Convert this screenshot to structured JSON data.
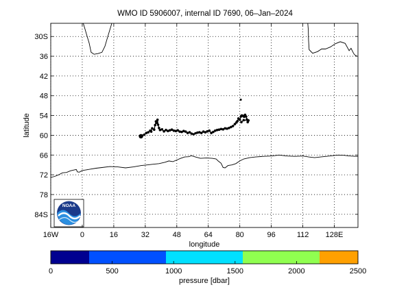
{
  "chart_data": {
    "type": "scatter",
    "title": "WMO ID 5906007, internal ID 7690, 06–Jan–2024",
    "xlabel": "longitude",
    "ylabel": "latitude",
    "xlim": [
      -16,
      140
    ],
    "ylim": [
      -88,
      -26
    ],
    "grid": true,
    "x_ticks": [
      {
        "value": -16,
        "label": "16W"
      },
      {
        "value": 0,
        "label": "0"
      },
      {
        "value": 16,
        "label": "16"
      },
      {
        "value": 32,
        "label": "32"
      },
      {
        "value": 48,
        "label": "48"
      },
      {
        "value": 64,
        "label": "64"
      },
      {
        "value": 80,
        "label": "80"
      },
      {
        "value": 96,
        "label": "96"
      },
      {
        "value": 112,
        "label": "112"
      },
      {
        "value": 128,
        "label": "128E"
      }
    ],
    "y_ticks": [
      {
        "value": -30,
        "label": "30S"
      },
      {
        "value": -36,
        "label": "36"
      },
      {
        "value": -42,
        "label": "42"
      },
      {
        "value": -48,
        "label": "48"
      },
      {
        "value": -54,
        "label": "54"
      },
      {
        "value": -60,
        "label": "60"
      },
      {
        "value": -66,
        "label": "66"
      },
      {
        "value": -72,
        "label": "72"
      },
      {
        "value": -78,
        "label": "78"
      },
      {
        "value": -84,
        "label": "84S"
      }
    ],
    "coastlines": [
      {
        "name": "africa",
        "points": [
          [
            0.5,
            -26
          ],
          [
            1.5,
            -28
          ],
          [
            2.5,
            -30
          ],
          [
            3.5,
            -32
          ],
          [
            4.5,
            -34.8
          ],
          [
            6,
            -35.4
          ],
          [
            8,
            -35.2
          ],
          [
            10,
            -34.8
          ],
          [
            11.5,
            -33
          ],
          [
            12.5,
            -31
          ],
          [
            13.5,
            -29
          ],
          [
            14.5,
            -27
          ],
          [
            15,
            -26
          ]
        ]
      },
      {
        "name": "australia",
        "points": [
          [
            114.5,
            -26
          ],
          [
            114.8,
            -28
          ],
          [
            114.9,
            -31
          ],
          [
            115.2,
            -34
          ],
          [
            117,
            -35.1
          ],
          [
            119.5,
            -34.6
          ],
          [
            121.5,
            -33.8
          ],
          [
            123.5,
            -33.8
          ],
          [
            126,
            -33.2
          ],
          [
            128.5,
            -32.2
          ],
          [
            131,
            -31.6
          ],
          [
            133.5,
            -32.1
          ],
          [
            135.5,
            -34.3
          ],
          [
            136.5,
            -33.6
          ],
          [
            137.5,
            -34.8
          ],
          [
            138.2,
            -35.5
          ],
          [
            139.5,
            -36
          ]
        ]
      },
      {
        "name": "antarctica",
        "points": [
          [
            -16,
            -72.8
          ],
          [
            -14,
            -72.5
          ],
          [
            -12,
            -72
          ],
          [
            -10,
            -71.4
          ],
          [
            -8,
            -71.3
          ],
          [
            -6,
            -70.8
          ],
          [
            -4,
            -70.5
          ],
          [
            -3,
            -70.4
          ],
          [
            -2.5,
            -71.1
          ],
          [
            -1.5,
            -71.2
          ],
          [
            0,
            -70.7
          ],
          [
            2,
            -70.5
          ],
          [
            4,
            -70.3
          ],
          [
            7,
            -70
          ],
          [
            10,
            -69.8
          ],
          [
            14,
            -69.5
          ],
          [
            18,
            -69.6
          ],
          [
            22,
            -69.9
          ],
          [
            26,
            -69.6
          ],
          [
            30,
            -69.2
          ],
          [
            33,
            -69
          ],
          [
            36,
            -68.8
          ],
          [
            39,
            -68.6
          ],
          [
            42,
            -68.2
          ],
          [
            44,
            -67.8
          ],
          [
            46,
            -68
          ],
          [
            48,
            -67.5
          ],
          [
            50,
            -67
          ],
          [
            52,
            -66.6
          ],
          [
            54,
            -66.5
          ],
          [
            55.5,
            -66.2
          ],
          [
            57,
            -66.5
          ],
          [
            60,
            -67
          ],
          [
            63,
            -66.9
          ],
          [
            66,
            -67
          ],
          [
            68,
            -67.2
          ],
          [
            69,
            -67.8
          ],
          [
            70.5,
            -68.5
          ],
          [
            71.5,
            -69.8
          ],
          [
            72.5,
            -69.9
          ],
          [
            74,
            -69.2
          ],
          [
            76,
            -69
          ],
          [
            78,
            -68.6
          ],
          [
            80,
            -67.8
          ],
          [
            82,
            -67.2
          ],
          [
            85,
            -66.8
          ],
          [
            88,
            -66.6
          ],
          [
            92,
            -66.4
          ],
          [
            96,
            -66.3
          ],
          [
            100,
            -66
          ],
          [
            104,
            -66.3
          ],
          [
            108,
            -66.4
          ],
          [
            112,
            -66.3
          ],
          [
            115,
            -66.6
          ],
          [
            118,
            -66.8
          ],
          [
            121,
            -66.6
          ],
          [
            124,
            -66.4
          ],
          [
            127,
            -66.2
          ],
          [
            130,
            -66
          ],
          [
            133,
            -66.1
          ],
          [
            136,
            -66.3
          ],
          [
            139,
            -66.4
          ],
          [
            140,
            -66.4
          ]
        ]
      }
    ],
    "float_track": {
      "name": "float track",
      "points": [
        [
          29.8,
          -60.3
        ],
        [
          30.5,
          -60.1
        ],
        [
          31.5,
          -59.8
        ],
        [
          32.5,
          -59.3
        ],
        [
          33.5,
          -59.1
        ],
        [
          34.5,
          -58.6
        ],
        [
          35,
          -58.9
        ],
        [
          35.5,
          -57.9
        ],
        [
          36.5,
          -58.3
        ],
        [
          37,
          -56.9
        ],
        [
          37.4,
          -55.8
        ],
        [
          37.8,
          -56.2
        ],
        [
          38.2,
          -55.3
        ],
        [
          38.5,
          -56.8
        ],
        [
          39,
          -57.8
        ],
        [
          39.5,
          -58.4
        ],
        [
          40.5,
          -58.2
        ],
        [
          41.5,
          -58.8
        ],
        [
          42.5,
          -58.4
        ],
        [
          43.5,
          -58.7
        ],
        [
          44.5,
          -58.5
        ],
        [
          45.5,
          -58.3
        ],
        [
          46.5,
          -58.6
        ],
        [
          47.5,
          -58.7
        ],
        [
          48.5,
          -58.5
        ],
        [
          49.5,
          -58.9
        ],
        [
          50.5,
          -59
        ],
        [
          51.5,
          -58.7
        ],
        [
          52.5,
          -58.9
        ],
        [
          53.5,
          -59.3
        ],
        [
          54.5,
          -59.1
        ],
        [
          55.5,
          -59.5
        ],
        [
          56.5,
          -59.7
        ],
        [
          57.5,
          -59.4
        ],
        [
          58.5,
          -59.2
        ],
        [
          59.5,
          -59.1
        ],
        [
          60.5,
          -59.3
        ],
        [
          61.5,
          -58.9
        ],
        [
          62.5,
          -59.1
        ],
        [
          63.5,
          -58.8
        ],
        [
          64.5,
          -58.6
        ],
        [
          65.5,
          -59.3
        ],
        [
          66.5,
          -59
        ],
        [
          67.5,
          -58.6
        ],
        [
          68.5,
          -58.4
        ],
        [
          69.5,
          -58.3
        ],
        [
          70.5,
          -58.1
        ],
        [
          71.5,
          -58.2
        ],
        [
          72.5,
          -57.9
        ],
        [
          73.5,
          -58
        ],
        [
          74.5,
          -57.8
        ],
        [
          75.5,
          -57.5
        ],
        [
          76.5,
          -57.2
        ],
        [
          77.5,
          -56.6
        ],
        [
          78.3,
          -56.1
        ],
        [
          78.8,
          -55.7
        ],
        [
          79.3,
          -54.9
        ],
        [
          80,
          -55.3
        ],
        [
          80.6,
          -54.3
        ],
        [
          81,
          -54
        ],
        [
          81.6,
          -54.1
        ],
        [
          82.2,
          -54.4
        ],
        [
          82.7,
          -53.8
        ],
        [
          83.2,
          -54.3
        ],
        [
          83.6,
          -55.2
        ],
        [
          84,
          -56
        ],
        [
          84.4,
          -55.5
        ],
        [
          82,
          -55.4
        ],
        [
          80.8,
          -56
        ]
      ]
    },
    "float_start": [
      29.8,
      -60.3
    ],
    "isolated_point": [
      80.5,
      -49.2
    ],
    "noaa_logo_text": "NOAA",
    "colorbar": {
      "label": "pressure [dbar]",
      "range": [
        0,
        2500
      ],
      "tick_values": [
        0,
        500,
        1000,
        1500,
        2000,
        2500
      ],
      "tick_labels": [
        "0",
        "500",
        "1000",
        "1500",
        "2000",
        "2500"
      ],
      "bands": [
        {
          "from": 0,
          "to": 312.5,
          "color": "#000090"
        },
        {
          "from": 312.5,
          "to": 937.5,
          "color": "#0050ff"
        },
        {
          "from": 937.5,
          "to": 1562.5,
          "color": "#00e0ff"
        },
        {
          "from": 1562.5,
          "to": 2187.5,
          "color": "#90ff50"
        },
        {
          "from": 2187.5,
          "to": 2500,
          "color": "#ffa000"
        }
      ]
    }
  }
}
